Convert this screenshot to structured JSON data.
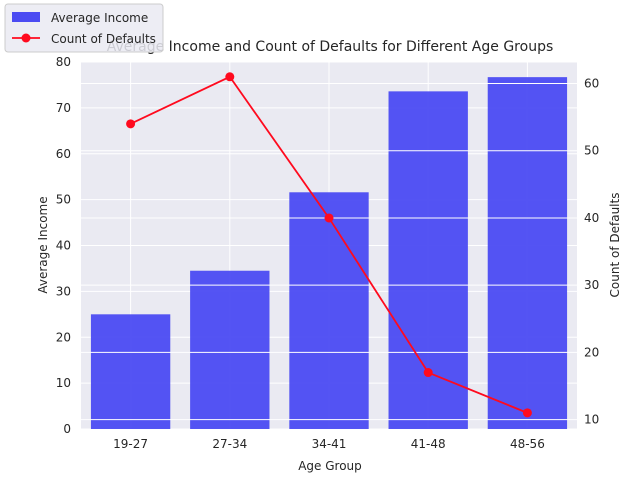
{
  "chart_data": {
    "type": "bar",
    "title": "Average Income and Count of Defaults for Different Age Groups",
    "xlabel": "Age Group",
    "ylabel": "Average Income",
    "y2label": "Count of Defaults",
    "categories": [
      "19-27",
      "27-34",
      "34-41",
      "41-48",
      "48-56"
    ],
    "series": [
      {
        "name": "Average Income",
        "type": "bar",
        "axis": "left",
        "color": "#4B4BF2",
        "values": [
          25.0,
          34.5,
          51.6,
          73.6,
          76.7
        ]
      },
      {
        "name": "Count of Defaults",
        "type": "line",
        "axis": "right",
        "color": "#FF0A1E",
        "values": [
          54,
          61,
          40,
          17,
          11
        ]
      }
    ],
    "ylim": [
      0,
      80
    ],
    "y2lim": [
      8.6,
      63.2
    ],
    "yticks": [
      0,
      10,
      20,
      30,
      40,
      50,
      60,
      70,
      80
    ],
    "y2ticks": [
      10,
      20,
      30,
      40,
      50,
      60
    ],
    "grid": true,
    "background": "#EAEAF2",
    "legend_placement": "top-left"
  }
}
